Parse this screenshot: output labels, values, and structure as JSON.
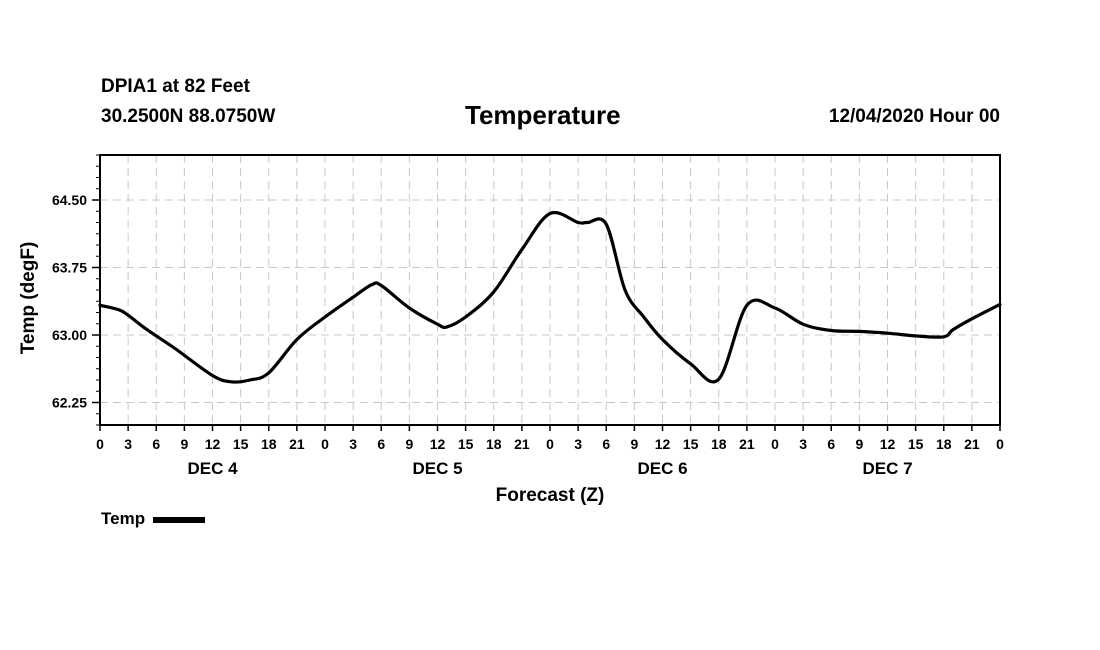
{
  "header": {
    "station": "DPIA1 at 82 Feet",
    "coords": "30.2500N 88.0750W",
    "title": "Temperature",
    "datetime": "12/04/2020 Hour 00"
  },
  "chart_data": {
    "type": "line",
    "title": "Temperature",
    "xlabel": "Forecast (Z)",
    "ylabel": "Temp (degF)",
    "ylim": [
      62.0,
      65.0
    ],
    "xlim": [
      0,
      96
    ],
    "yticks": [
      62.25,
      63.0,
      63.75,
      64.5
    ],
    "ytick_labels": [
      "62.25",
      "63.00",
      "63.75",
      "64.50"
    ],
    "xticks": [
      0,
      3,
      6,
      9,
      12,
      15,
      18,
      21,
      24,
      27,
      30,
      33,
      36,
      39,
      42,
      45,
      48,
      51,
      54,
      57,
      60,
      63,
      66,
      69,
      72,
      75,
      78,
      81,
      84,
      87,
      90,
      93,
      96
    ],
    "xtick_labels": [
      "0",
      "3",
      "6",
      "9",
      "12",
      "15",
      "18",
      "21",
      "0",
      "3",
      "6",
      "9",
      "12",
      "15",
      "18",
      "21",
      "0",
      "3",
      "6",
      "9",
      "12",
      "15",
      "18",
      "21",
      "0",
      "3",
      "6",
      "9",
      "12",
      "15",
      "18",
      "21",
      "0"
    ],
    "day_labels": [
      {
        "label": "DEC 4",
        "x": 12
      },
      {
        "label": "DEC 5",
        "x": 36
      },
      {
        "label": "DEC 6",
        "x": 60
      },
      {
        "label": "DEC 7",
        "x": 84
      }
    ],
    "grid": true,
    "legend_position": "bottom-left",
    "series": [
      {
        "name": "Temp",
        "color": "#000000",
        "x": [
          0,
          2,
          3,
          5,
          8,
          12,
          14,
          16,
          18,
          21,
          24,
          27,
          29,
          30,
          33,
          36,
          37,
          39,
          42,
          45,
          48,
          51,
          52,
          54,
          56,
          58,
          60,
          63,
          66,
          69,
          72,
          75,
          78,
          81,
          84,
          87,
          90,
          91,
          93,
          96
        ],
        "values": [
          63.33,
          63.28,
          63.22,
          63.06,
          62.85,
          62.55,
          62.48,
          62.5,
          62.58,
          62.95,
          63.2,
          63.42,
          63.56,
          63.55,
          63.3,
          63.12,
          63.09,
          63.2,
          63.48,
          63.95,
          64.35,
          64.25,
          64.25,
          64.23,
          63.5,
          63.2,
          62.95,
          62.68,
          62.51,
          63.33,
          63.3,
          63.12,
          63.05,
          63.04,
          63.02,
          62.99,
          62.98,
          63.06,
          63.18,
          63.34
        ]
      }
    ]
  },
  "legend": {
    "label": "Temp"
  }
}
